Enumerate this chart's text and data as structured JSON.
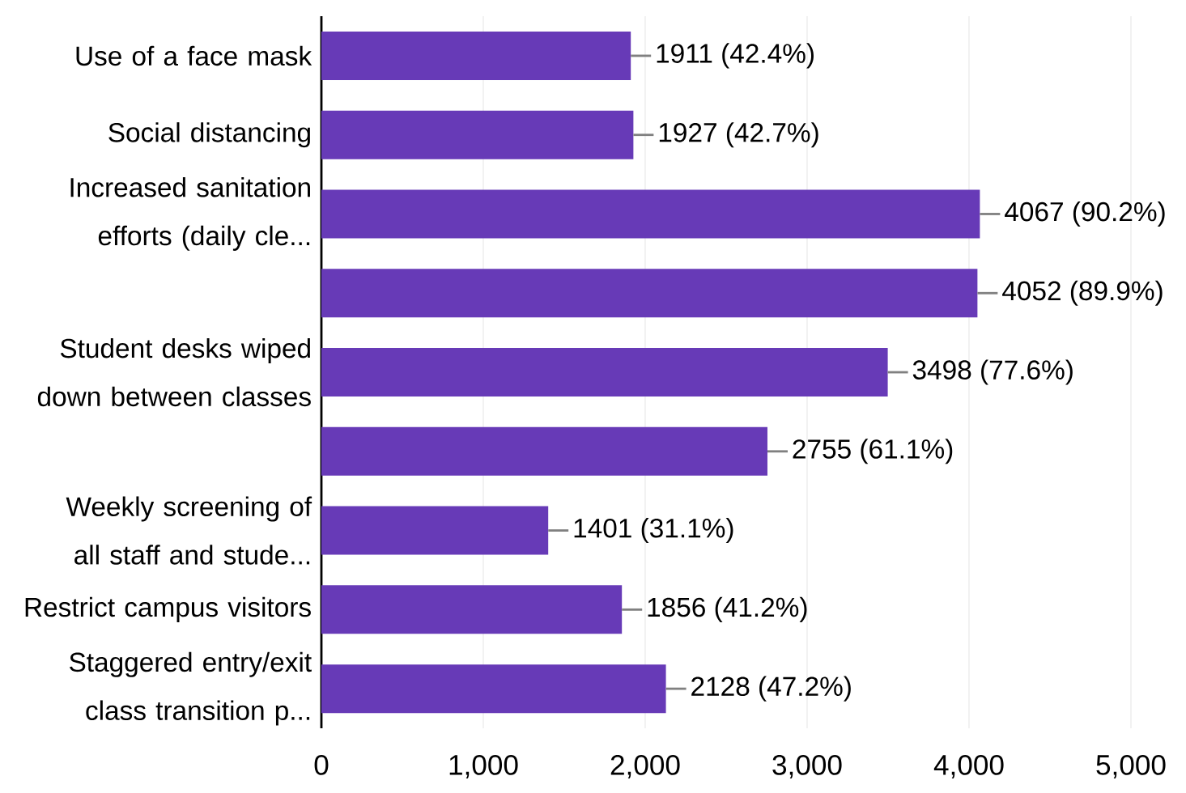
{
  "chart_data": {
    "type": "bar",
    "orientation": "horizontal",
    "categories": [
      "Use of a face mask",
      "Social distancing",
      "Increased sanitation efforts (daily cle...",
      null,
      "Student desks wiped down between classes",
      null,
      "Weekly screening of all staff and stude...",
      "Restrict campus visitors",
      "Staggered entry/exit class transition p..."
    ],
    "values": [
      1911,
      1927,
      4067,
      4052,
      3498,
      2755,
      1401,
      1856,
      2128
    ],
    "value_labels": [
      "1911 (42.4%)",
      "1927 (42.7%)",
      "4067 (90.2%)",
      "4052 (89.9%)",
      "3498 (77.6%)",
      "2755 (61.1%)",
      "1401 (31.1%)",
      "1856 (41.2%)",
      "2128 (47.2%)"
    ],
    "color": "#673ab7",
    "xlim": [
      0,
      5000
    ],
    "xticks": [
      {
        "value": 0,
        "label": "0"
      },
      {
        "value": 1000,
        "label": "1,000"
      },
      {
        "value": 2000,
        "label": "2,000"
      },
      {
        "value": 3000,
        "label": "3,000"
      },
      {
        "value": 4000,
        "label": "4,000"
      },
      {
        "value": 5000,
        "label": "5,000"
      }
    ],
    "grid": "x"
  }
}
